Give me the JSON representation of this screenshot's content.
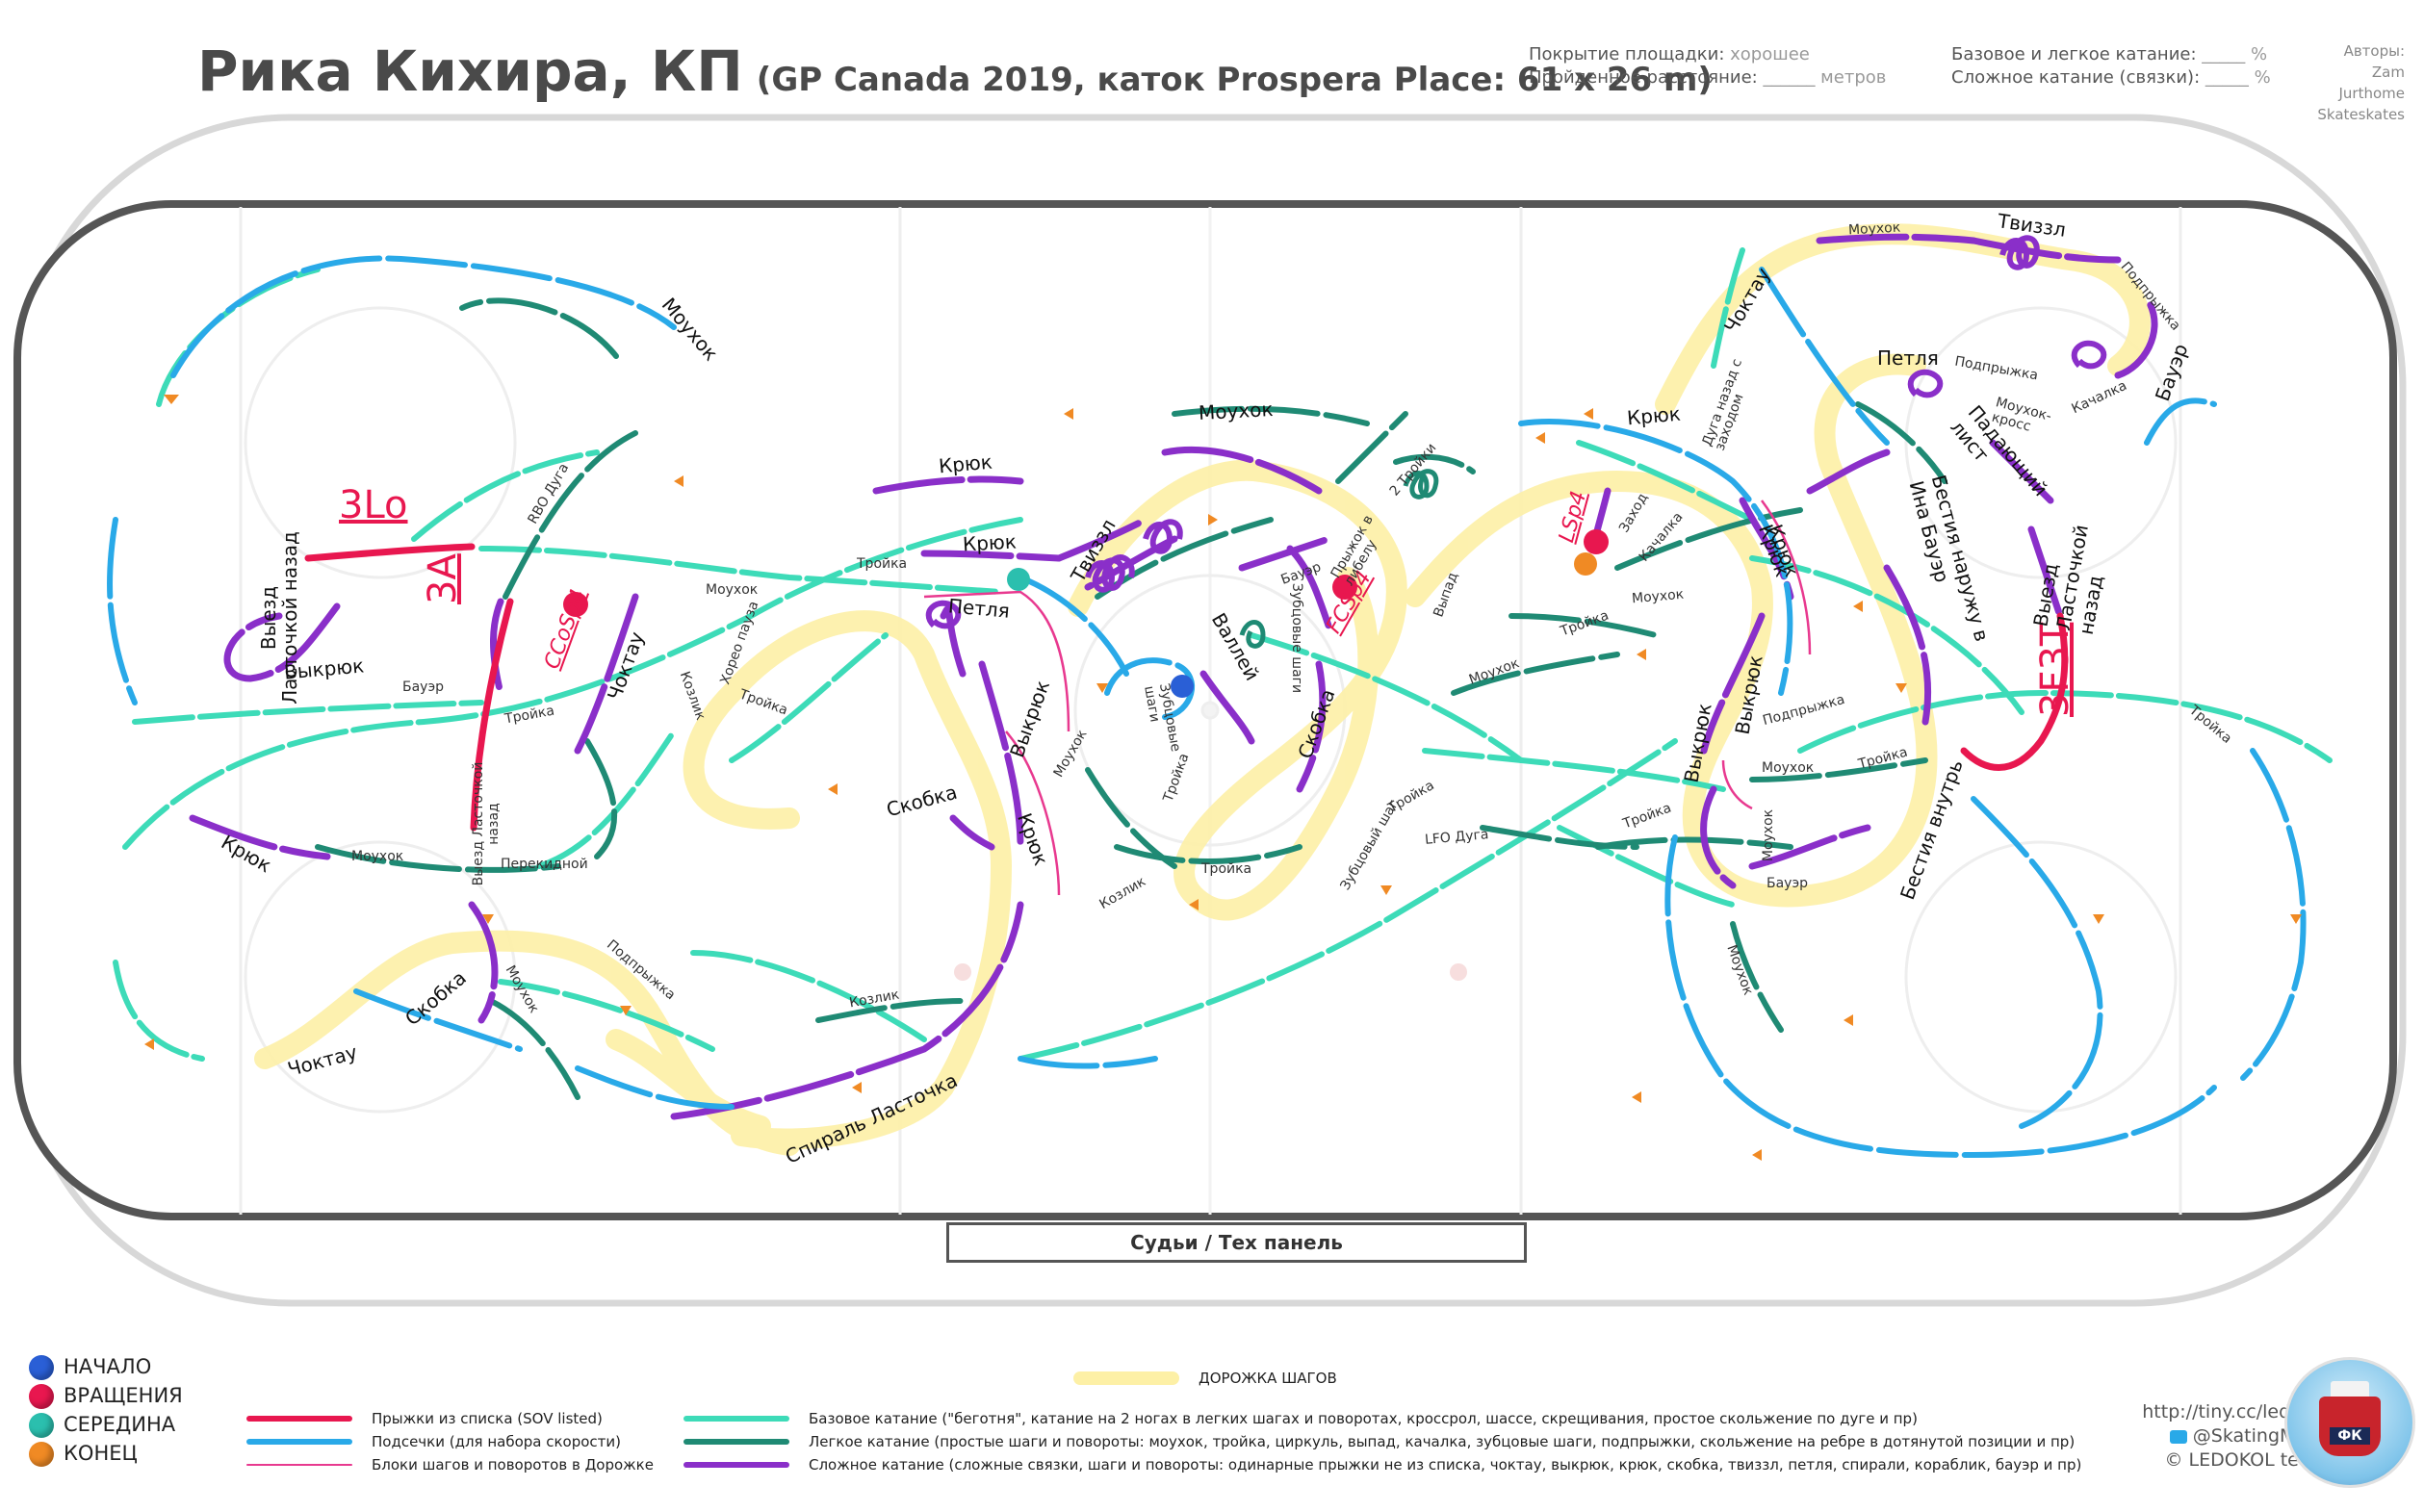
{
  "title": {
    "main": "Рика Кихира, КП",
    "sub": "(GP Canada 2019, каток Prospera Place: 61 x 26 m)"
  },
  "header_stats": {
    "coverage_label": "Покрытие площадки:",
    "coverage_value": "хорошее",
    "distance_label": "Пройденное расстояние:",
    "distance_value": "______ метров",
    "basic_label": "Базовое и легкое катание:",
    "basic_value": "_____ %",
    "complex_label": "Сложное катание (связки):",
    "complex_value": "_____ %"
  },
  "authors": [
    "Авторы:",
    "Zam",
    "Jurthome",
    "Skateskates"
  ],
  "judges_panel": "Судьи / Тех панель",
  "elements": {
    "jump_3lo": "3Lo",
    "jump_3a": "3A",
    "jump_3f3t": "3F3T",
    "spin_ccosp4": "CCoSp4",
    "spin_fcsp4": "FCSp4",
    "spin_lsp4": "LSp4"
  },
  "labels": [
    "Моухок",
    "Выезд Ласточкой назад",
    "Выкрюк",
    "Бауэр",
    "RBO Дуга",
    "Чоктау",
    "Тройка",
    "Выезд Ласточкой назад",
    "Перекидной",
    "Крюк",
    "Моухок",
    "Скобка",
    "Чоктау",
    "Моухок",
    "Подпрыжка",
    "Козлик",
    "Спираль Ласточка",
    "Крюк",
    "Крюк",
    "Моухок",
    "Тройка",
    "Хорео пауза",
    "Козлик",
    "Тройка",
    "Петля",
    "Выкрюк",
    "Моухок",
    "Скобка",
    "Крюк",
    "Козлик",
    "Твиззл",
    "Моухок",
    "Зубцовые шаги",
    "Валлей",
    "Тройка",
    "Тройка",
    "Бауэр",
    "Прыжок в либелу",
    "2 Тройки",
    "Зубцовые шаги",
    "Скобка",
    "Выпад",
    "Зубцовый шаг",
    "LFO Дуга",
    "Заход",
    "Качалка",
    "Моухок",
    "Тройка",
    "Моухок",
    "Крюк",
    "Крюк",
    "Дуга назад с заходом",
    "Чоктау",
    "Моухок",
    "Твиззл",
    "Подпрыжка",
    "Бауэр",
    "Качалка",
    "Моухок-кросс",
    "Петля",
    "Подпрыжка",
    "Падающий лист",
    "Выезд Ласточкой назад",
    "Бестия наружу в Ина Бауэр",
    "Крюк",
    "Выкрюк",
    "Выкрюк",
    "Подпрыжка",
    "Моухок",
    "Тройка",
    "Моухок",
    "Бауэр",
    "Бестия внутрь",
    "Тройка",
    "Моухок",
    "Тройка",
    "Тройка"
  ],
  "markers_legend": [
    {
      "label": "НАЧАЛО",
      "color": "#2a5fd6"
    },
    {
      "label": "ВРАЩЕНИЯ",
      "color": "#e8174f"
    },
    {
      "label": "СЕРЕДИНА",
      "color": "#2bbfae"
    },
    {
      "label": "КОНЕЦ",
      "color": "#f08a24"
    }
  ],
  "steps_sequence_label": "ДОРОЖКА ШАГОВ",
  "line_legend_left": [
    {
      "label": "Прыжки из списка (SOV listed)",
      "color": "#e8174f"
    },
    {
      "label": "Подсечки (для набора скорости)",
      "color": "#29a9e8"
    },
    {
      "label": "Блоки шагов и поворотов в Дорожке",
      "color": "#e8398f"
    }
  ],
  "line_legend_right": [
    {
      "label": "Базовое катание (\"беготня\", катание на 2 ногах в легких шагах и поворотах, кроссрол, шассе, скрещивания, простое скольжение по дуге и пр)",
      "color": "#3ddbb8"
    },
    {
      "label": "Легкое катание (простые шаги и повороты: моухок, тройка, циркуль, выпад, качалка, зубцовые шаги, подпрыжки, скольжение на ребре в дотянутой позиции и пр)",
      "color": "#1f8a74"
    },
    {
      "label": "Сложное катание (сложные связки, шаги и повороты:  одинарные прыжки не из списка, чоктау, выкрюк, крюк, скобка, твиззл, петля, спирали, кораблик, бауэр и пр)",
      "color": "#8a2fc9"
    }
  ],
  "site": [
    "http://tiny.cc/ledokol",
    "@SkatingMaps",
    "© LEDOKOL team"
  ],
  "logo_text": "ФК"
}
